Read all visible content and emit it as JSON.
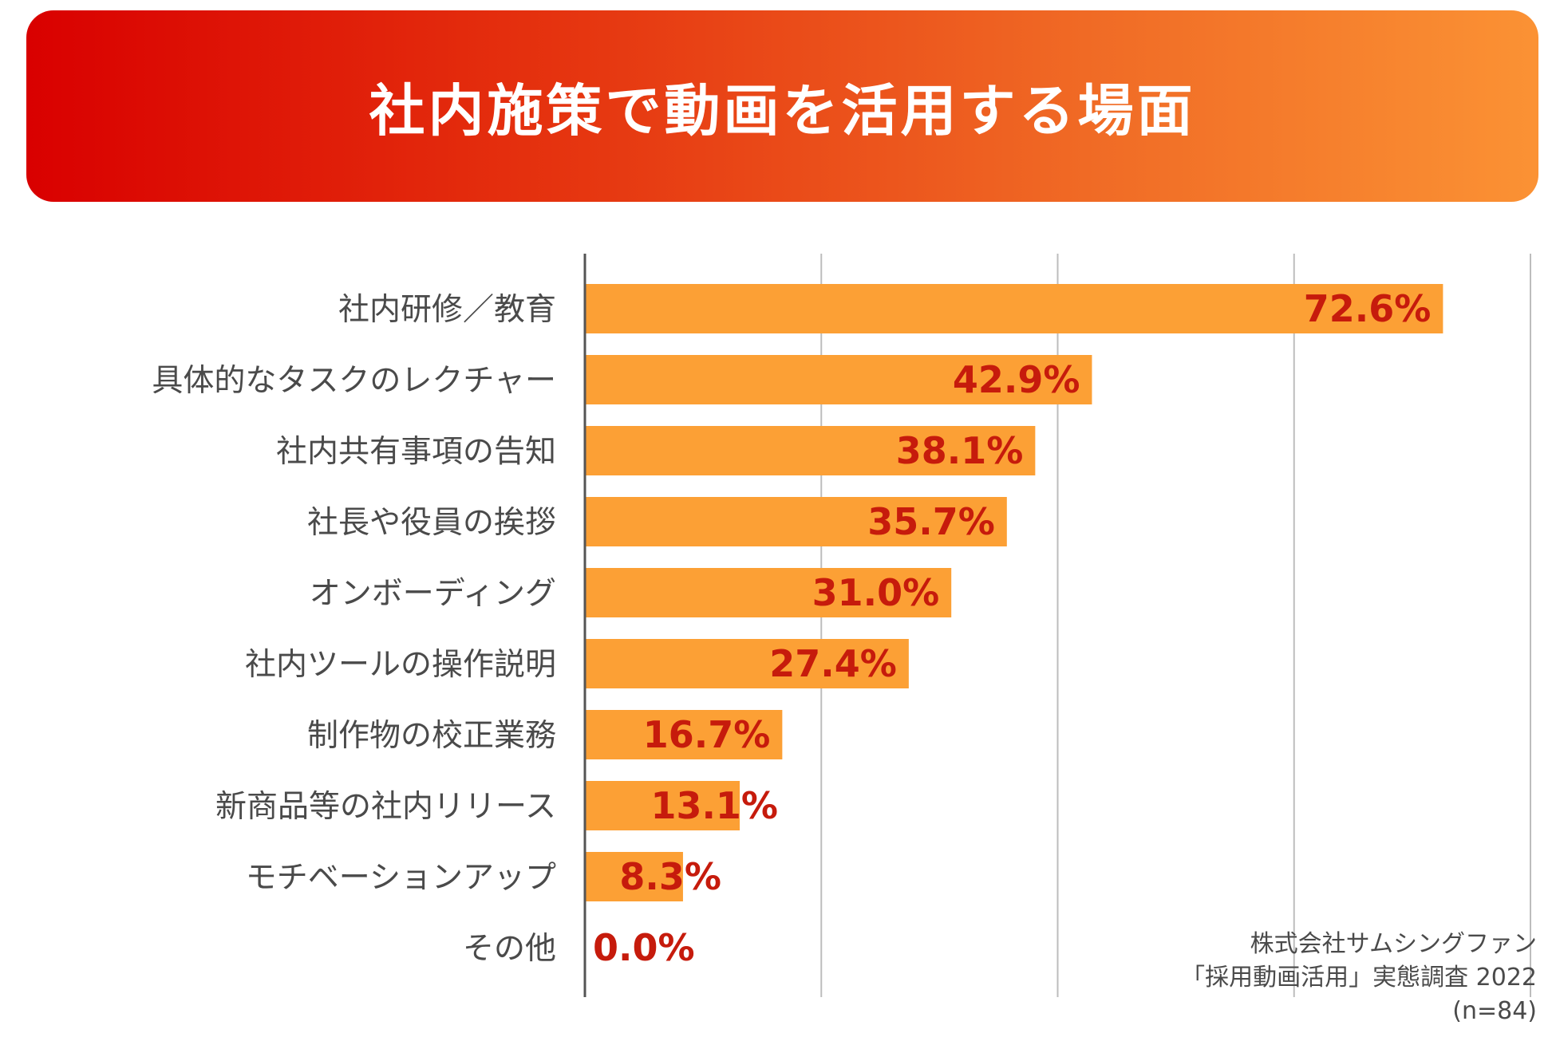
{
  "title": "社内施策で動画を活用する場面",
  "source": {
    "line1": "株式会社サムシングファン",
    "line2": "「採用動画活用」実態調査 2022",
    "line3": "(n=84)"
  },
  "colors": {
    "bar": "#fca035",
    "value_label": "#c61b0c",
    "axis": "#555555",
    "grid": "#bdbdbd"
  },
  "chart_data": {
    "type": "bar",
    "orientation": "horizontal",
    "title": "社内施策で動画を活用する場面",
    "categories": [
      "社内研修／教育",
      "具体的なタスクのレクチャー",
      "社内共有事項の告知",
      "社長や役員の挨拶",
      "オンボーディング",
      "社内ツールの操作説明",
      "制作物の校正業務",
      "新商品等の社内リリース",
      "モチベーションアップ",
      "その他"
    ],
    "values": [
      72.6,
      42.9,
      38.1,
      35.7,
      31.0,
      27.4,
      16.7,
      13.1,
      8.3,
      0.0
    ],
    "value_labels": [
      "72.6%",
      "42.9%",
      "38.1%",
      "35.7%",
      "31.0%",
      "27.4%",
      "16.7%",
      "13.1%",
      "8.3%",
      "0.0%"
    ],
    "xlim": [
      0,
      80
    ],
    "grid": true,
    "gridlines_at": [
      20,
      40,
      60,
      80
    ],
    "xlabel": "",
    "ylabel": ""
  }
}
